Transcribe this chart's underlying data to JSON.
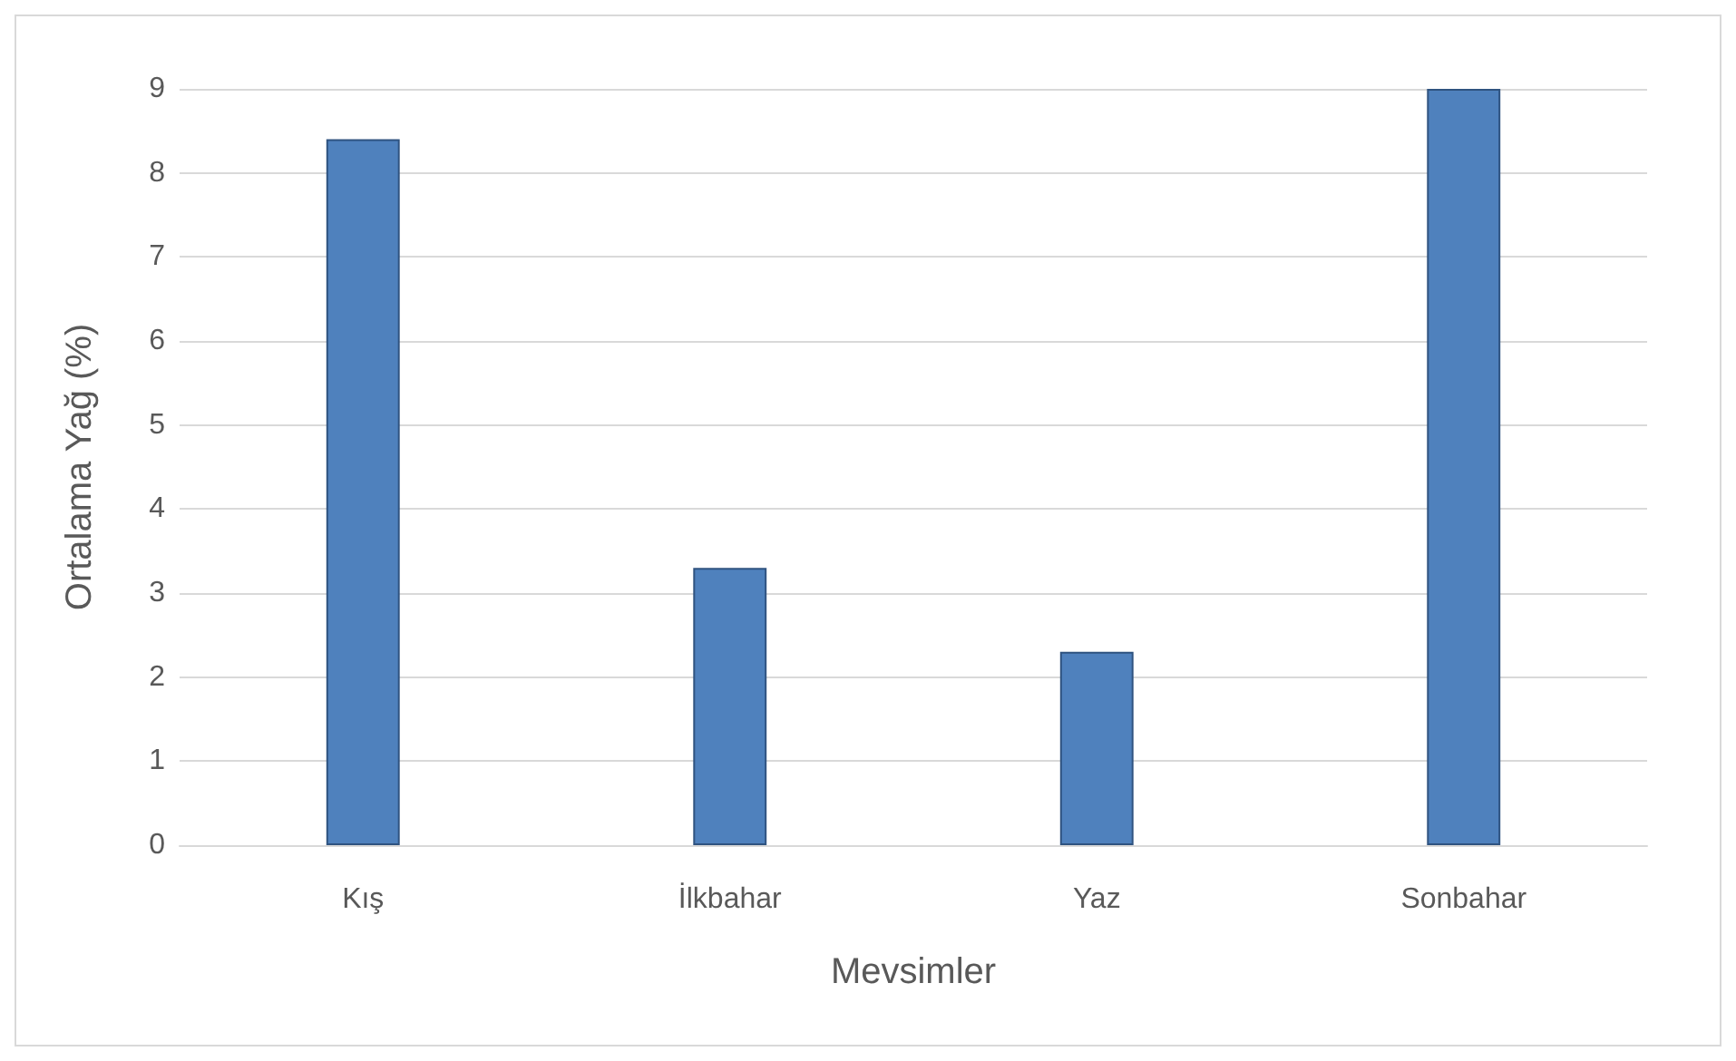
{
  "chart_data": {
    "type": "bar",
    "xlabel": "Mevsimler",
    "ylabel": "Ortalama Yağ (%)",
    "categories": [
      "Kış",
      "İlkbahar",
      "Yaz",
      "Sonbahar"
    ],
    "values": [
      8.4,
      3.3,
      2.3,
      9.0
    ],
    "color": "#4f81bd",
    "ylim": [
      0,
      9
    ],
    "yticks": [
      0,
      1,
      2,
      3,
      4,
      5,
      6,
      7,
      8,
      9
    ],
    "grid": "y"
  }
}
